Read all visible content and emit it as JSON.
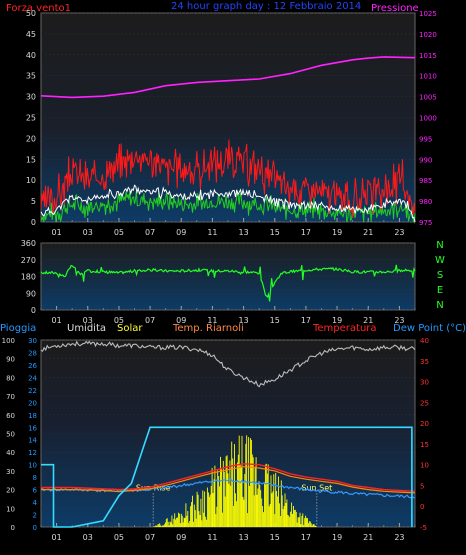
{
  "header": {
    "left_title": "Forza vento1",
    "center_title": "24 hour graph day : 12 Febbraio 2014",
    "right_title": "Pressione"
  },
  "colors": {
    "wind_gust": "#ff1a1a",
    "wind_avg": "#ffffff",
    "wind_green": "#22cc22",
    "pressure": "#ff22ff",
    "direction": "#22ff22",
    "humidity": "#bbbbbb",
    "solar": "#ffff00",
    "temperature": "#ff2222",
    "windchill": "#ff8800",
    "dew_point": "#3399ff",
    "rain": "#33ddff",
    "axis_left": "#d8d8d8",
    "axis_magenta": "#ff22ff",
    "axis_rain": "#2299ff",
    "axis_temp": "#ff3333",
    "panel_top": "#1c1c1c",
    "panel_bottom": "#0d3b66"
  },
  "chart_data": [
    {
      "type": "line",
      "name": "wind-pressure",
      "x_ticks": [
        "01",
        "03",
        "05",
        "07",
        "09",
        "11",
        "13",
        "15",
        "17",
        "19",
        "21",
        "23"
      ],
      "y_left_ticks": [
        "0",
        "5",
        "10",
        "15",
        "20",
        "25",
        "30",
        "35",
        "40",
        "45",
        "50"
      ],
      "y_right_ticks": [
        "975",
        "980",
        "985",
        "990",
        "995",
        "1000",
        "1005",
        "1010",
        "1015",
        "1020",
        "1025"
      ],
      "ylim_left": [
        0,
        50
      ],
      "ylim_right": [
        975,
        1025
      ],
      "xlim": [
        0,
        24
      ],
      "series": [
        {
          "key": "pressure",
          "x": [
            0,
            2,
            4,
            6,
            8,
            10,
            12,
            14,
            16,
            18,
            20,
            21,
            22,
            23,
            24
          ],
          "y": [
            1005.2,
            1004.8,
            1005.1,
            1006.0,
            1007.6,
            1008.4,
            1008.8,
            1009.2,
            1010.5,
            1012.5,
            1013.8,
            1014.2,
            1014.5,
            1014.4,
            1014.3
          ]
        },
        {
          "key": "gust",
          "x": [
            0,
            1,
            2,
            3,
            4,
            5,
            6,
            7,
            8,
            9,
            10,
            11,
            12,
            13,
            14,
            15,
            16,
            17,
            18,
            19,
            20,
            21,
            22,
            23,
            23.5,
            24
          ],
          "y": [
            4,
            6,
            12,
            10,
            11,
            14,
            16,
            15,
            13,
            13,
            12,
            14,
            15,
            14,
            13,
            10,
            8,
            8,
            7,
            6,
            5,
            6,
            7,
            10,
            8,
            1
          ]
        },
        {
          "key": "average",
          "x": [
            0,
            1,
            2,
            3,
            4,
            5,
            6,
            7,
            8,
            9,
            10,
            11,
            12,
            13,
            14,
            15,
            16,
            17,
            18,
            19,
            20,
            21,
            22,
            23,
            23.5,
            24
          ],
          "y": [
            2,
            3,
            6,
            5,
            6,
            7,
            8,
            7,
            7,
            6,
            6,
            7,
            7,
            7,
            6,
            5,
            4,
            4,
            4,
            3,
            3,
            3,
            4,
            5,
            4,
            0
          ]
        }
      ]
    },
    {
      "type": "line",
      "name": "wind-direction",
      "x_ticks": [
        "01",
        "03",
        "05",
        "07",
        "09",
        "11",
        "13",
        "15",
        "17",
        "19",
        "21",
        "23"
      ],
      "y_ticks": [
        "0",
        "90",
        "180",
        "270",
        "360"
      ],
      "compass_labels": [
        "N",
        "W",
        "S",
        "E",
        "N"
      ],
      "ylim": [
        0,
        360
      ],
      "xlim": [
        0,
        24
      ],
      "series": [
        {
          "key": "direction",
          "x": [
            0,
            1,
            1.5,
            2,
            2.5,
            3,
            4,
            5,
            6,
            7,
            8,
            9,
            10,
            11,
            12,
            13,
            14,
            14.5,
            15,
            15.5,
            16,
            17,
            18,
            19,
            20,
            21,
            22,
            23,
            24
          ],
          "y": [
            200,
            200,
            180,
            240,
            190,
            210,
            205,
            200,
            210,
            215,
            210,
            210,
            215,
            210,
            210,
            205,
            200,
            60,
            150,
            200,
            205,
            215,
            220,
            220,
            205,
            205,
            205,
            210,
            215
          ]
        }
      ]
    },
    {
      "type": "line",
      "name": "rain-humidity-solar-temperature",
      "legend": [
        "Pioggia",
        "Umidita",
        "Solar",
        "Temp. Riarnoli",
        "Temperatura",
        "Dew Point (°C)"
      ],
      "x_ticks": [
        "01",
        "03",
        "05",
        "07",
        "09",
        "11",
        "13",
        "15",
        "17",
        "19",
        "21",
        "23"
      ],
      "y_pct_ticks": [
        "0",
        "10",
        "20",
        "30",
        "40",
        "50",
        "60",
        "70",
        "80",
        "90",
        "100"
      ],
      "y_rain_ticks": [
        "0",
        "2",
        "4",
        "6",
        "8",
        "10",
        "12",
        "14",
        "16",
        "18",
        "20",
        "22",
        "24",
        "26",
        "28",
        "30"
      ],
      "y_temp_ticks": [
        "-5",
        "0",
        "5",
        "10",
        "15",
        "20",
        "25",
        "30",
        "35",
        "40"
      ],
      "ylim_pct": [
        0,
        100
      ],
      "ylim_rain": [
        0,
        30
      ],
      "ylim_temp": [
        -5,
        40
      ],
      "xlim": [
        0,
        24
      ],
      "annotations": [
        {
          "label": "Sun Rise",
          "x": 7.2
        },
        {
          "label": "Sun Set",
          "x": 17.7
        }
      ],
      "series": [
        {
          "key": "humidity",
          "x": [
            0,
            1,
            2,
            3,
            4,
            5,
            6,
            7,
            8,
            9,
            10,
            11,
            12,
            13,
            14,
            15,
            16,
            17,
            18,
            19,
            20,
            21,
            22,
            23,
            24
          ],
          "y": [
            95,
            97,
            98,
            98,
            98,
            97,
            97,
            96,
            96,
            96,
            95,
            92,
            84,
            80,
            76,
            79,
            84,
            89,
            93,
            95,
            96,
            95,
            96,
            96,
            95
          ]
        },
        {
          "key": "rain",
          "x": [
            0,
            0.8,
            0.8,
            2,
            4,
            5,
            5.8,
            6.6,
            7,
            23.8,
            23.8
          ],
          "y": [
            10,
            10,
            0,
            0,
            1,
            5,
            7,
            13,
            16,
            16,
            0
          ]
        },
        {
          "key": "temperature",
          "x": [
            0,
            2,
            4,
            5,
            6,
            7,
            8,
            9,
            10,
            11,
            12,
            13,
            14,
            15,
            16,
            17,
            18,
            19,
            20,
            21,
            22,
            23,
            24
          ],
          "y": [
            4.5,
            4.5,
            4.2,
            4.0,
            4.2,
            4.6,
            5.5,
            6.5,
            7.5,
            8.5,
            9.5,
            10.2,
            10.0,
            9.0,
            7.8,
            7.0,
            6.5,
            6.0,
            5.0,
            4.5,
            4.0,
            3.8,
            3.6
          ]
        },
        {
          "key": "windchill",
          "x": [
            0,
            2,
            4,
            5,
            6,
            7,
            8,
            9,
            10,
            11,
            12,
            13,
            14,
            15,
            16,
            17,
            18,
            19,
            20,
            21,
            22,
            23,
            24
          ],
          "y": [
            4.0,
            4.0,
            3.8,
            3.5,
            3.8,
            4.2,
            5.0,
            6.0,
            7.0,
            8.0,
            8.8,
            9.5,
            9.2,
            8.5,
            7.2,
            6.5,
            6.0,
            5.5,
            4.6,
            4.0,
            3.6,
            3.4,
            3.2
          ]
        },
        {
          "key": "dew_point",
          "x": [
            0,
            2,
            4,
            6,
            7,
            8,
            9,
            10,
            11,
            12,
            13,
            14,
            15,
            16,
            17,
            18,
            19,
            20,
            21,
            22,
            23,
            24
          ],
          "y": [
            4.0,
            4.0,
            3.8,
            3.8,
            4.0,
            4.5,
            5.0,
            5.5,
            6.0,
            6.3,
            6.0,
            5.5,
            5.0,
            4.5,
            4.0,
            3.6,
            3.4,
            3.0,
            2.8,
            2.6,
            2.4,
            2.2
          ]
        },
        {
          "key": "solar_envelope",
          "x": [
            7.2,
            8,
            9,
            10,
            11,
            12,
            13,
            14,
            15,
            16,
            17,
            17.7
          ],
          "y": [
            0,
            4,
            10,
            18,
            30,
            40,
            48,
            40,
            28,
            16,
            6,
            0
          ]
        }
      ]
    }
  ]
}
